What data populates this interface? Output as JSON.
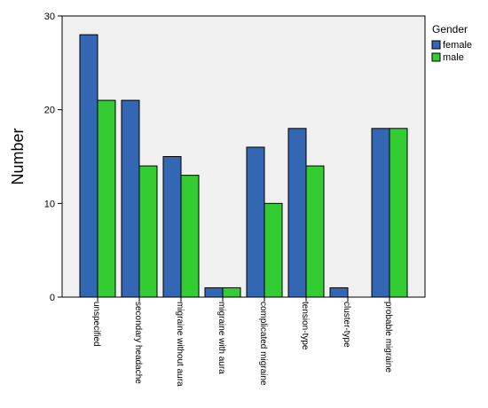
{
  "chart_data": {
    "type": "bar",
    "ylabel": "Number",
    "xlabel": "",
    "ylim": [
      0,
      30
    ],
    "yticks": [
      0,
      10,
      20,
      30
    ],
    "categories": [
      "unspecified",
      "secondary headache",
      "migraine without aura",
      "migraine with aura",
      "complicated migraine",
      "tension-type",
      "cluster-type",
      "probable migraine"
    ],
    "legend": {
      "title": "Gender",
      "placement": "top-right"
    },
    "series": [
      {
        "name": "female",
        "color": "#3366b3",
        "values": [
          28,
          21,
          15,
          1,
          16,
          18,
          1,
          18
        ]
      },
      {
        "name": "male",
        "color": "#33cc33",
        "values": [
          21,
          14,
          13,
          1,
          10,
          14,
          0,
          18
        ]
      }
    ],
    "background": "#f0f0f0",
    "grid": false
  }
}
